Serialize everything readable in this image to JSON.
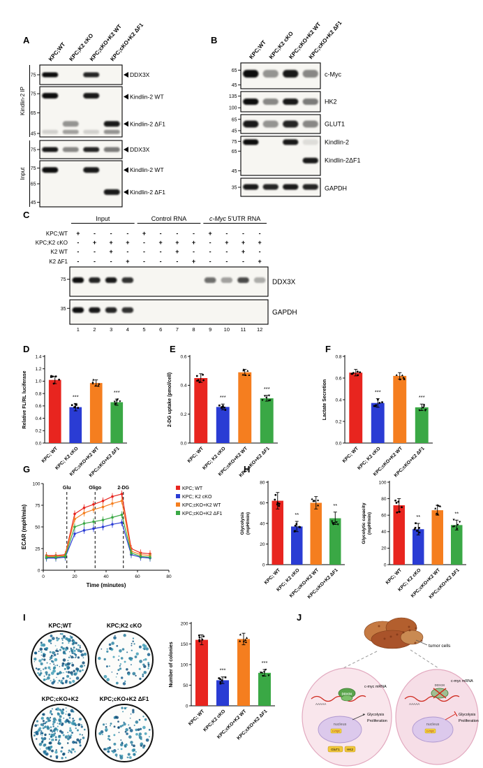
{
  "palette": {
    "red": "#e8251f",
    "blue": "#2a3cd4",
    "orange": "#f57e1f",
    "green": "#3aa845"
  },
  "groups": [
    "KPC; WT",
    "KPC; K2 cKO",
    "KPC;cKO+K2 WT",
    "KPC;cKO+K2 ΔF1"
  ],
  "panels": {
    "A": {
      "letter": "A",
      "col_labels": [
        "KPC;WT",
        "KPC;K2 cKO",
        "KPC;cKO+K2 WT",
        "KPC;cKO+K2 ΔF1"
      ],
      "side_groups": [
        {
          "label": "Kindlin-2 IP"
        },
        {
          "label": "Input"
        }
      ],
      "boxes": [
        {
          "mws": [
            {
              "t": "75",
              "yf": 0.5
            }
          ],
          "arrows": [
            {
              "t": "DDX3X",
              "yf": 0.5
            }
          ],
          "bands": [
            {
              "yf": 0.5,
              "h": 7,
              "lanes": [
                1,
                0,
                0.9,
                0
              ]
            }
          ]
        },
        {
          "mws": [
            {
              "t": "75",
              "yf": 0.14
            },
            {
              "t": "65",
              "yf": 0.52
            },
            {
              "t": "45",
              "yf": 0.93
            }
          ],
          "arrows": [
            {
              "t": "Kindlin-2 WT",
              "yf": 0.2
            },
            {
              "t": "Kindlin-2 ΔF1",
              "yf": 0.74
            }
          ],
          "bands": [
            {
              "yf": 0.18,
              "h": 8,
              "lanes": [
                1,
                0,
                0.95,
                0
              ]
            },
            {
              "yf": 0.74,
              "h": 8,
              "lanes": [
                0,
                0.4,
                0,
                0.95
              ]
            },
            {
              "yf": 0.9,
              "h": 6,
              "lanes": [
                0.15,
                0.35,
                0.15,
                0.4
              ]
            }
          ]
        },
        {
          "mws": [
            {
              "t": "75",
              "yf": 0.5
            }
          ],
          "arrows": [
            {
              "t": "DDX3X",
              "yf": 0.5
            }
          ],
          "bands": [
            {
              "yf": 0.5,
              "h": 7,
              "lanes": [
                0.95,
                0.45,
                0.9,
                0.5
              ]
            }
          ]
        },
        {
          "mws": [
            {
              "t": "75",
              "yf": 0.16
            },
            {
              "t": "65",
              "yf": 0.5
            },
            {
              "t": "45",
              "yf": 0.9
            }
          ],
          "arrows": [
            {
              "t": "Kindlin-2 WT",
              "yf": 0.2
            },
            {
              "t": "Kindlin-2 ΔF1",
              "yf": 0.68
            }
          ],
          "bands": [
            {
              "yf": 0.2,
              "h": 8,
              "lanes": [
                1,
                0,
                0.95,
                0
              ]
            },
            {
              "yf": 0.68,
              "h": 8,
              "lanes": [
                0,
                0,
                0,
                0.95
              ]
            }
          ]
        }
      ]
    },
    "B": {
      "letter": "B",
      "col_labels": [
        "KPC;WT",
        "KPC;K2 cKO",
        "KPC;cKO+K2 WT",
        "KPC;cKO+K2 ΔF1"
      ],
      "rows": [
        {
          "labels": [
            {
              "t": "c-Myc",
              "yf": 0.45
            }
          ],
          "mws": [
            {
              "t": "65",
              "yf": 0.28
            },
            {
              "t": "45",
              "yf": 0.85
            }
          ],
          "bands": [
            {
              "yf": 0.42,
              "h": 11,
              "lanes": [
                1,
                0.4,
                0.95,
                0.45
              ]
            }
          ]
        },
        {
          "labels": [
            {
              "t": "HK2",
              "yf": 0.5
            }
          ],
          "mws": [
            {
              "t": "135",
              "yf": 0.22
            },
            {
              "t": "100",
              "yf": 0.8
            }
          ],
          "bands": [
            {
              "yf": 0.5,
              "h": 9,
              "lanes": [
                1,
                0.45,
                0.95,
                0.5
              ]
            }
          ]
        },
        {
          "labels": [
            {
              "t": "GLUT1",
              "yf": 0.5
            }
          ],
          "mws": [
            {
              "t": "65",
              "yf": 0.25
            },
            {
              "t": "45",
              "yf": 0.85
            }
          ],
          "bands": [
            {
              "yf": 0.5,
              "h": 10,
              "lanes": [
                0.95,
                0.4,
                0.9,
                0.45
              ]
            }
          ]
        },
        {
          "labels": [
            {
              "t": "Kindlin-2",
              "yf": 0.15
            },
            {
              "t": "Kindlin-2ΔF1",
              "yf": 0.62
            }
          ],
          "mws": [
            {
              "t": "75",
              "yf": 0.13
            },
            {
              "t": "65",
              "yf": 0.38
            },
            {
              "t": "45",
              "yf": 0.88
            }
          ],
          "bands": [
            {
              "yf": 0.15,
              "h": 8,
              "lanes": [
                1,
                0,
                0.95,
                0.1
              ]
            },
            {
              "yf": 0.62,
              "h": 8,
              "lanes": [
                0,
                0,
                0,
                0.95
              ]
            }
          ]
        },
        {
          "labels": [
            {
              "t": "GAPDH",
              "yf": 0.55
            }
          ],
          "mws": [
            {
              "t": "35",
              "yf": 0.5
            }
          ],
          "bands": [
            {
              "yf": 0.48,
              "h": 8,
              "lanes": [
                0.95,
                0.9,
                0.95,
                0.9
              ]
            }
          ]
        }
      ]
    },
    "C": {
      "letter": "C",
      "headers": [
        {
          "t": "Input"
        },
        {
          "t": "Control RNA"
        },
        {
          "t": "c-Myc 5'UTR RNA",
          "italic_prefix": "c-Myc",
          "rest": " 5'UTR RNA"
        }
      ],
      "row_labels": [
        "KPC;WT",
        "KPC;K2 cKO",
        "K2 WT",
        "K2 ΔF1"
      ],
      "pm": [
        [
          "+",
          "-",
          "-",
          "-",
          "+",
          "-",
          "-",
          "-",
          "+",
          "-",
          "-",
          "-"
        ],
        [
          "-",
          "+",
          "+",
          "+",
          "-",
          "+",
          "+",
          "+",
          "-",
          "+",
          "+",
          "+"
        ],
        [
          "-",
          "-",
          "+",
          "-",
          "-",
          "-",
          "+",
          "-",
          "-",
          "-",
          "+",
          "-"
        ],
        [
          "-",
          "-",
          "-",
          "+",
          "-",
          "-",
          "-",
          "+",
          "-",
          "-",
          "-",
          "+"
        ]
      ],
      "blots": [
        {
          "label": "DDX3X",
          "mw": "75",
          "mw_yf": 0.42,
          "bands": [
            {
              "yf": 0.45,
              "h": 8,
              "wf": 0.7,
              "lanes": [
                1,
                0.9,
                0.95,
                0.85,
                0,
                0,
                0,
                0,
                0.6,
                0.35,
                0.75,
                0.3
              ]
            }
          ]
        },
        {
          "label": "GAPDH",
          "mw": "35",
          "mw_yf": 0.35,
          "bands": [
            {
              "yf": 0.42,
              "h": 8,
              "wf": 0.7,
              "lanes": [
                1,
                0.95,
                0.9,
                0.85,
                0,
                0,
                0,
                0,
                0,
                0,
                0,
                0
              ]
            }
          ]
        }
      ],
      "lane_numbers": [
        "1",
        "2",
        "3",
        "4",
        "5",
        "6",
        "7",
        "8",
        "9",
        "10",
        "11",
        "12"
      ]
    },
    "D": {
      "letter": "D"
    },
    "E": {
      "letter": "E"
    },
    "F": {
      "letter": "F"
    },
    "G": {
      "letter": "G"
    },
    "H": {
      "letter": "H"
    },
    "I": {
      "letter": "I",
      "plates": [
        {
          "label": "KPC;WT",
          "count": 160,
          "seed": 1
        },
        {
          "label": "KPC;K2 cKO",
          "count": 60,
          "seed": 2
        },
        {
          "label": "KPC;cKO+K2",
          "count": 155,
          "seed": 3
        },
        {
          "label": "KPC;cKO+K2 ΔF1",
          "count": 80,
          "seed": 4
        }
      ]
    },
    "J": {
      "letter": "J",
      "labels": {
        "tumor": "tumor cells",
        "aaaaa": "AAAAA",
        "ddx3x": "DDX3X",
        "mrna_left_label": "c-myc mRNA",
        "mrna_right_label": "c-myc mRNA",
        "nucleus": "nucleus",
        "cmyc": "c-myc",
        "glycolysis": "Glycolysis",
        "proliferation": "Proliferation",
        "glut1": "GluT1",
        "hk2": "HK2"
      }
    }
  },
  "chart_data": [
    {
      "id": "D",
      "type": "bar",
      "ylabel": "Relative FL/RL luciferase",
      "ylim": [
        0,
        1.4
      ],
      "step": 0.2,
      "dec": 1,
      "categories": [
        "KPC; WT",
        "KPC; K2 cKO",
        "KPC;cKO+K2 WT",
        "KPC;cKO+K2 ΔF1"
      ],
      "values": [
        1.02,
        0.58,
        0.97,
        0.66
      ],
      "errors": [
        0.06,
        0.06,
        0.05,
        0.05
      ],
      "sig": [
        "",
        "***",
        "",
        "***"
      ],
      "colors": [
        "red",
        "blue",
        "orange",
        "green"
      ],
      "seed": 7
    },
    {
      "id": "E",
      "type": "bar",
      "ylabel": "2-DG uptake (pmol/cell)",
      "ylim": [
        0,
        0.6
      ],
      "step": 0.2,
      "dec": 1,
      "categories": [
        "KPC; WT",
        "KPC; K2 cKO",
        "KPC;cKO+K2 WT",
        "KPC;cKO+K2 ΔF1"
      ],
      "values": [
        0.45,
        0.25,
        0.49,
        0.31
      ],
      "errors": [
        0.03,
        0.02,
        0.02,
        0.02
      ],
      "sig": [
        "",
        "***",
        "",
        "***"
      ],
      "colors": [
        "red",
        "blue",
        "orange",
        "green"
      ],
      "seed": 11
    },
    {
      "id": "F",
      "type": "bar",
      "ylabel": "Lactate  Secretion",
      "ylim": [
        0,
        0.8
      ],
      "step": 0.2,
      "dec": 1,
      "categories": [
        "KPC; WT",
        "KPC; K2 cKO",
        "KPC;cKO+K2 WT",
        "KPC;cKO+K2 ΔF1"
      ],
      "values": [
        0.65,
        0.37,
        0.62,
        0.33
      ],
      "errors": [
        0.03,
        0.04,
        0.03,
        0.03
      ],
      "sig": [
        "",
        "***",
        "",
        "***"
      ],
      "colors": [
        "red",
        "blue",
        "orange",
        "green"
      ],
      "seed": 13
    },
    {
      "id": "G",
      "type": "line",
      "ylabel": "ECAR (mpH/min)",
      "xlabel": "Time (minutes)",
      "ylim": [
        0,
        100
      ],
      "yticks": [
        0,
        25,
        50,
        75,
        100
      ],
      "xlim": [
        0,
        80
      ],
      "xticks": [
        0,
        20,
        40,
        60,
        80
      ],
      "x": [
        2,
        8,
        14,
        20,
        26,
        32,
        38,
        44,
        50,
        56,
        62,
        68
      ],
      "series": [
        {
          "name": "KPC; WT",
          "color": "red",
          "err": 4,
          "values": [
            17,
            17,
            18,
            65,
            72,
            76,
            80,
            85,
            88,
            25,
            20,
            19
          ]
        },
        {
          "name": "KPC; K2 cKO",
          "color": "blue",
          "err": 4,
          "values": [
            14,
            14,
            15,
            42,
            46,
            48,
            50,
            53,
            55,
            18,
            15,
            14
          ]
        },
        {
          "name": "KPC;cKO+K2 WT",
          "color": "orange",
          "err": 4,
          "values": [
            16,
            16,
            17,
            59,
            66,
            70,
            73,
            77,
            80,
            22,
            18,
            17
          ]
        },
        {
          "name": "KPC;cKO+K2 ΔF1",
          "color": "green",
          "err": 4,
          "values": [
            15,
            15,
            16,
            50,
            54,
            56,
            58,
            61,
            64,
            20,
            16,
            15
          ]
        }
      ],
      "events": [
        {
          "x": 15,
          "label": "Glu"
        },
        {
          "x": 33,
          "label": "Oligo"
        },
        {
          "x": 51,
          "label": "2-DG"
        }
      ]
    },
    {
      "id": "H1",
      "type": "bar",
      "ylabel": "Glycolysis",
      "ylabel2": "(mpH/min)",
      "ylim": [
        0,
        80
      ],
      "step": 20,
      "dec": 0,
      "categories": [
        "KPC; WT",
        "KPC; K2 cKO",
        "KPC;cKO+K2 WT",
        "KPC;cKO+K2 ΔF1"
      ],
      "values": [
        62,
        37,
        60,
        45
      ],
      "errors": [
        8,
        5,
        6,
        6
      ],
      "sig": [
        "",
        "**",
        "",
        "**"
      ],
      "colors": [
        "red",
        "blue",
        "orange",
        "green"
      ],
      "seed": 17
    },
    {
      "id": "H2",
      "type": "bar",
      "ylabel": "Glycolytic capacity",
      "ylabel2": "(mpH/min)",
      "ylim": [
        0,
        100
      ],
      "step": 20,
      "dec": 0,
      "categories": [
        "KPC; WT",
        "KPC; K2 cKO",
        "KPC;cKO+K2 WT",
        "KPC;cKO+K2 ΔF1"
      ],
      "values": [
        72,
        43,
        66,
        48
      ],
      "errors": [
        8,
        7,
        6,
        6
      ],
      "sig": [
        "",
        "**",
        "",
        "**"
      ],
      "colors": [
        "red",
        "blue",
        "orange",
        "green"
      ],
      "seed": 19
    },
    {
      "id": "I",
      "type": "bar",
      "ylabel": "Number of colonies",
      "ylim": [
        0,
        200
      ],
      "step": 50,
      "dec": 0,
      "categories": [
        "KPC; WT",
        "KPC;K2 cKO",
        "KPC;cKO+K2 WT",
        "KPC;cKO+K2 ΔF1"
      ],
      "values": [
        160,
        62,
        162,
        80
      ],
      "errors": [
        12,
        8,
        14,
        8
      ],
      "sig": [
        "",
        "***",
        "",
        "***"
      ],
      "colors": [
        "red",
        "blue",
        "orange",
        "green"
      ],
      "seed": 23
    }
  ]
}
